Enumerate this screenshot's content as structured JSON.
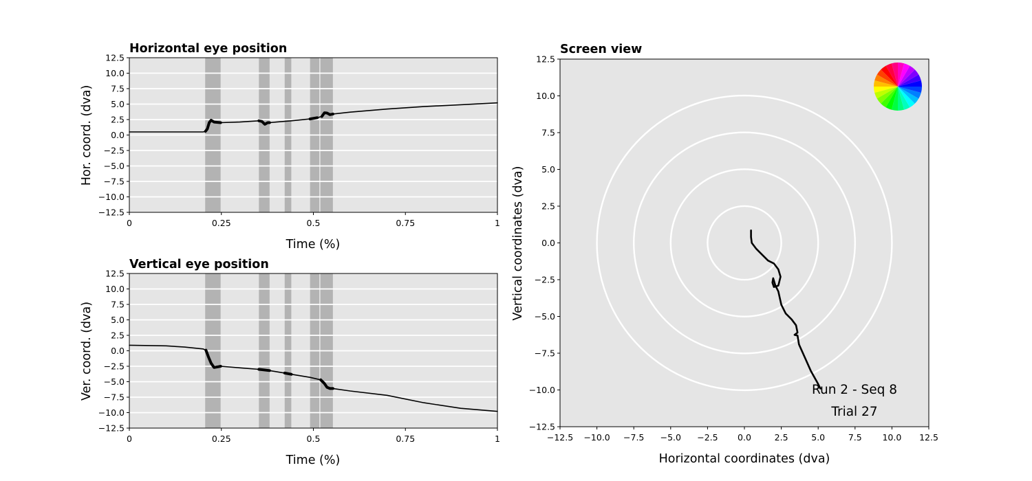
{
  "chart_data": [
    {
      "id": "horizontal",
      "type": "line",
      "title": "Horizontal eye position",
      "xlabel": "Time (%)",
      "ylabel": "Hor. coord. (dva)",
      "xlim": [
        0,
        1
      ],
      "ylim": [
        -12.5,
        12.5
      ],
      "xticks": [
        "0",
        "0.25",
        "0.5",
        "0.75",
        "1"
      ],
      "yticks": [
        "12.5",
        "10.0",
        "7.5",
        "5.0",
        "2.5",
        "0.0",
        "−2.5",
        "−5.0",
        "−7.5",
        "−10.0",
        "−12.5"
      ],
      "grid": true,
      "shaded_intervals": [
        [
          0.206,
          0.248
        ],
        [
          0.352,
          0.381
        ],
        [
          0.422,
          0.44
        ],
        [
          0.491,
          0.516
        ],
        [
          0.519,
          0.553
        ]
      ],
      "series": [
        {
          "color": "#000000",
          "points": [
            [
              0,
              0.5
            ],
            [
              0.1,
              0.5
            ],
            [
              0.2,
              0.5
            ],
            [
              0.207,
              0.6
            ],
            [
              0.212,
              1.0
            ],
            [
              0.217,
              2.0
            ],
            [
              0.222,
              2.4
            ],
            [
              0.23,
              2.1
            ],
            [
              0.248,
              2.0
            ],
            [
              0.3,
              2.1
            ],
            [
              0.352,
              2.3
            ],
            [
              0.36,
              2.2
            ],
            [
              0.368,
              1.75
            ],
            [
              0.376,
              2.0
            ],
            [
              0.381,
              2.0
            ],
            [
              0.4,
              2.1
            ],
            [
              0.44,
              2.3
            ],
            [
              0.491,
              2.6
            ],
            [
              0.51,
              2.8
            ],
            [
              0.523,
              3.0
            ],
            [
              0.53,
              3.6
            ],
            [
              0.537,
              3.55
            ],
            [
              0.545,
              3.3
            ],
            [
              0.553,
              3.4
            ],
            [
              0.6,
              3.7
            ],
            [
              0.7,
              4.2
            ],
            [
              0.8,
              4.6
            ],
            [
              0.9,
              4.9
            ],
            [
              1.0,
              5.2
            ]
          ]
        }
      ]
    },
    {
      "id": "vertical",
      "type": "line",
      "title": "Vertical eye position",
      "xlabel": "Time (%)",
      "ylabel": "Ver. coord. (dva)",
      "xlim": [
        0,
        1
      ],
      "ylim": [
        -12.5,
        12.5
      ],
      "xticks": [
        "0",
        "0.25",
        "0.5",
        "0.75",
        "1"
      ],
      "yticks": [
        "12.5",
        "10.0",
        "7.5",
        "5.0",
        "2.5",
        "0.0",
        "−2.5",
        "−5.0",
        "−7.5",
        "−10.0",
        "−12.5"
      ],
      "grid": true,
      "shaded_intervals": [
        [
          0.206,
          0.248
        ],
        [
          0.352,
          0.381
        ],
        [
          0.422,
          0.44
        ],
        [
          0.491,
          0.516
        ],
        [
          0.519,
          0.553
        ]
      ],
      "series": [
        {
          "color": "#000000",
          "points": [
            [
              0,
              0.9
            ],
            [
              0.1,
              0.8
            ],
            [
              0.15,
              0.6
            ],
            [
              0.2,
              0.3
            ],
            [
              0.208,
              0.1
            ],
            [
              0.215,
              -1.0
            ],
            [
              0.222,
              -2.0
            ],
            [
              0.23,
              -2.7
            ],
            [
              0.24,
              -2.6
            ],
            [
              0.248,
              -2.5
            ],
            [
              0.3,
              -2.75
            ],
            [
              0.352,
              -3.0
            ],
            [
              0.381,
              -3.2
            ],
            [
              0.422,
              -3.6
            ],
            [
              0.44,
              -3.8
            ],
            [
              0.491,
              -4.3
            ],
            [
              0.52,
              -4.7
            ],
            [
              0.53,
              -5.3
            ],
            [
              0.537,
              -5.9
            ],
            [
              0.545,
              -6.1
            ],
            [
              0.553,
              -6.1
            ],
            [
              0.6,
              -6.5
            ],
            [
              0.7,
              -7.2
            ],
            [
              0.8,
              -8.4
            ],
            [
              0.9,
              -9.3
            ],
            [
              1.0,
              -9.8
            ]
          ]
        }
      ]
    },
    {
      "id": "screen",
      "type": "line",
      "title": "Screen view",
      "xlabel": "Horizontal coordinates (dva)",
      "ylabel": "Vertical coordinates (dva)",
      "xlim": [
        -12.5,
        12.5
      ],
      "ylim": [
        -12.5,
        12.5
      ],
      "xticks": [
        "−12.5",
        "−10.0",
        "−7.5",
        "−5.0",
        "−2.5",
        "0.0",
        "2.5",
        "5.0",
        "7.5",
        "10.0",
        "12.5"
      ],
      "yticks": [
        "12.5",
        "10.0",
        "7.5",
        "5.0",
        "2.5",
        "0.0",
        "−2.5",
        "−5.0",
        "−7.5",
        "−10.0",
        "−12.5"
      ],
      "grid": false,
      "circle_radii": [
        2.5,
        5,
        7.5,
        10
      ],
      "annotations": [
        "Run 2 - Seq 8",
        "Trial 27"
      ],
      "series": [
        {
          "color": "#000000",
          "points": [
            [
              0.45,
              0.85
            ],
            [
              0.45,
              0.4
            ],
            [
              0.5,
              0.0
            ],
            [
              0.8,
              -0.4
            ],
            [
              1.0,
              -0.6
            ],
            [
              1.3,
              -0.9
            ],
            [
              1.6,
              -1.2
            ],
            [
              2.0,
              -1.4
            ],
            [
              2.3,
              -1.8
            ],
            [
              2.45,
              -2.3
            ],
            [
              2.3,
              -2.9
            ],
            [
              2.0,
              -3.0
            ],
            [
              1.9,
              -2.7
            ],
            [
              1.95,
              -2.4
            ],
            [
              2.1,
              -2.9
            ],
            [
              2.3,
              -3.3
            ],
            [
              2.5,
              -4.2
            ],
            [
              2.8,
              -4.8
            ],
            [
              3.2,
              -5.2
            ],
            [
              3.5,
              -5.6
            ],
            [
              3.6,
              -6.1
            ],
            [
              3.4,
              -6.25
            ],
            [
              3.6,
              -6.3
            ],
            [
              3.7,
              -6.9
            ],
            [
              4.1,
              -7.8
            ],
            [
              4.5,
              -8.7
            ],
            [
              5.0,
              -9.6
            ],
            [
              5.15,
              -9.9
            ]
          ]
        }
      ]
    }
  ]
}
